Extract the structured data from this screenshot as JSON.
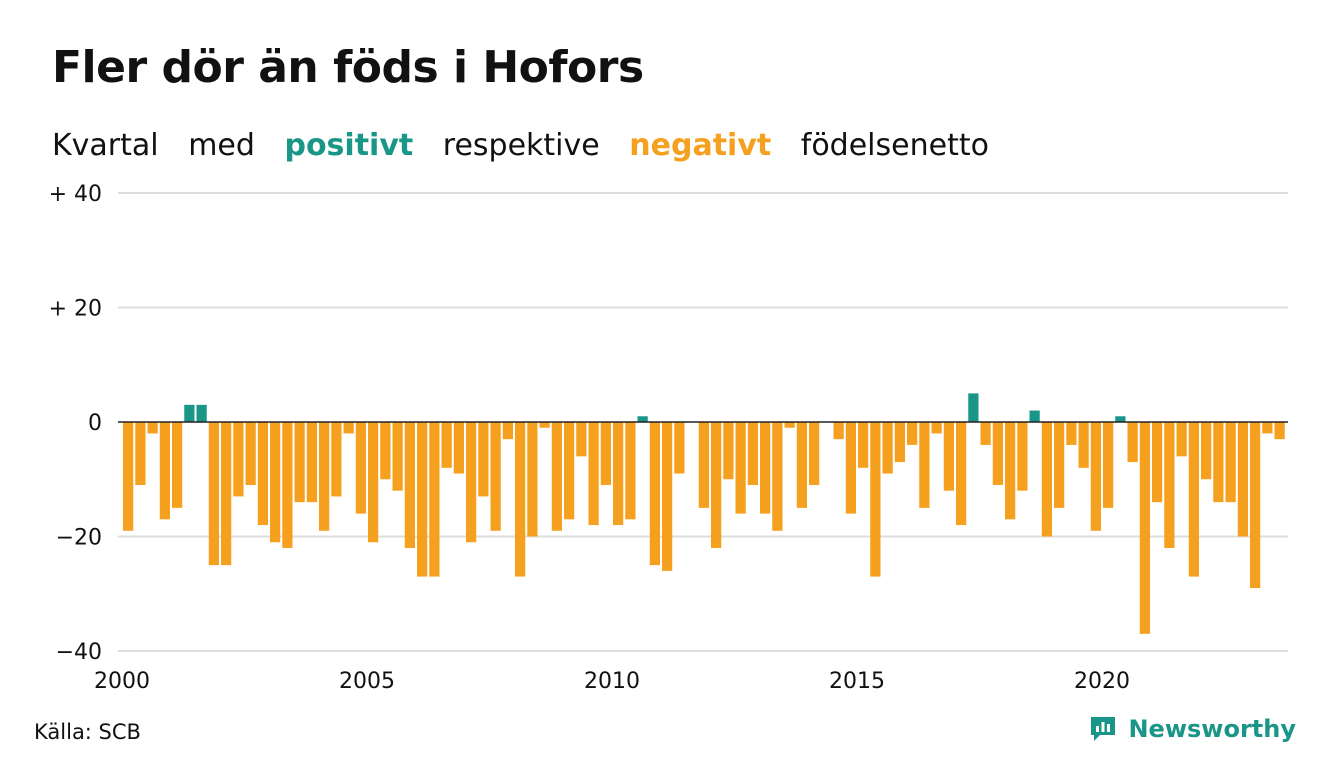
{
  "title": "Fler dör än föds i Hofors",
  "subtitle": {
    "parts": [
      "Kvartal",
      "med",
      "positivt",
      "respektive",
      "negativt",
      "födelsenetto"
    ]
  },
  "source": "Källa: SCB",
  "brand": "Newsworthy",
  "colors": {
    "positive": "#1a9688",
    "negative": "#f5a01f",
    "grid": "#dddddd",
    "zero": "#222222",
    "text": "#111111"
  },
  "chart_data": {
    "type": "bar",
    "xlabel": "",
    "ylabel": "",
    "ylim": [
      -40,
      40
    ],
    "yticks": [
      {
        "value": 40,
        "label": "+ 40"
      },
      {
        "value": 20,
        "label": "+ 20"
      },
      {
        "value": 0,
        "label": "0"
      },
      {
        "value": -20,
        "label": "−20"
      },
      {
        "value": -40,
        "label": "−40"
      }
    ],
    "xticks": [
      "2000",
      "2005",
      "2010",
      "2015",
      "2020"
    ],
    "start": "2000 Q1",
    "values": [
      -19,
      -11,
      -2,
      -17,
      -15,
      3,
      3,
      -25,
      -25,
      -13,
      -11,
      -18,
      -21,
      -22,
      -14,
      -14,
      -19,
      -13,
      -2,
      -16,
      -21,
      -10,
      -12,
      -22,
      -27,
      -27,
      -8,
      -9,
      -21,
      -13,
      -19,
      -3,
      -27,
      -20,
      -1,
      -19,
      -17,
      -6,
      -18,
      -11,
      -18,
      -17,
      1,
      -25,
      -26,
      -9,
      0,
      -15,
      -22,
      -10,
      -16,
      -11,
      -16,
      -19,
      -1,
      -15,
      -11,
      0,
      -3,
      -16,
      -8,
      -27,
      -9,
      -7,
      -4,
      -15,
      -2,
      -12,
      -18,
      5,
      -4,
      -11,
      -17,
      -12,
      2,
      -20,
      -15,
      -4,
      -8,
      -19,
      -15,
      1,
      -7,
      -37,
      -14,
      -22,
      -6,
      -27,
      -10,
      -14,
      -14,
      -20,
      -29,
      -2,
      -3
    ]
  }
}
